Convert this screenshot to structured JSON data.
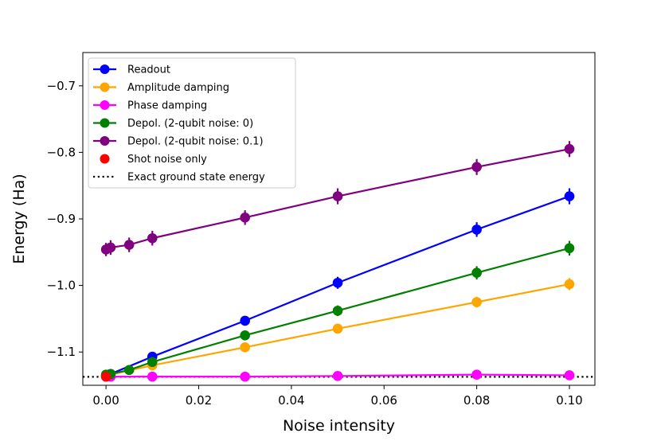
{
  "chart_data": {
    "type": "line",
    "xlabel": "Noise intensity",
    "ylabel": "Energy (Ha)",
    "xlim": [
      -0.005,
      0.1055
    ],
    "ylim": [
      -1.15,
      -0.65
    ],
    "xticks": [
      0.0,
      0.02,
      0.04,
      0.06,
      0.08,
      0.1
    ],
    "xtick_labels": [
      "0.00",
      "0.02",
      "0.04",
      "0.06",
      "0.08",
      "0.10"
    ],
    "yticks": [
      -0.7,
      -0.8,
      -0.9,
      -1.0,
      -1.1
    ],
    "ytick_labels": [
      "−0.7",
      "−0.8",
      "−0.9",
      "−1.0",
      "−1.1"
    ],
    "legend_position": "upper-left",
    "grid": false,
    "series": [
      {
        "name": "Readout",
        "color": "#0000ff",
        "x": [
          0.0,
          0.001,
          0.01,
          0.03,
          0.05,
          0.08,
          0.1
        ],
        "y": [
          -1.135,
          -1.133,
          -1.107,
          -1.053,
          -0.996,
          -0.916,
          -0.866
        ],
        "yerr": [
          0.004,
          0.004,
          0.006,
          0.007,
          0.009,
          0.011,
          0.012
        ]
      },
      {
        "name": "Amplitude damping",
        "color": "#ffa500",
        "x": [
          0.0,
          0.001,
          0.01,
          0.03,
          0.05,
          0.08,
          0.1
        ],
        "y": [
          -1.136,
          -1.134,
          -1.12,
          -1.093,
          -1.065,
          -1.025,
          -0.998
        ],
        "yerr": [
          0.004,
          0.004,
          0.005,
          0.006,
          0.007,
          0.008,
          0.009
        ]
      },
      {
        "name": "Phase damping",
        "color": "#ff00ff",
        "x": [
          0.0,
          0.001,
          0.01,
          0.03,
          0.05,
          0.08,
          0.1
        ],
        "y": [
          -1.137,
          -1.137,
          -1.137,
          -1.137,
          -1.136,
          -1.134,
          -1.135
        ],
        "yerr": [
          0.003,
          0.003,
          0.003,
          0.004,
          0.004,
          0.005,
          0.004
        ]
      },
      {
        "name": "Depol. (2-qubit noise: 0)",
        "color": "#008000",
        "x": [
          0.0,
          0.001,
          0.005,
          0.01,
          0.03,
          0.05,
          0.08,
          0.1
        ],
        "y": [
          -1.134,
          -1.133,
          -1.127,
          -1.115,
          -1.075,
          -1.038,
          -0.981,
          -0.944
        ],
        "yerr": [
          0.004,
          0.004,
          0.005,
          0.006,
          0.007,
          0.008,
          0.01,
          0.011
        ]
      },
      {
        "name": "Depol. (2-qubit noise: 0.1)",
        "color": "#800080",
        "x": [
          0.0,
          0.001,
          0.005,
          0.01,
          0.03,
          0.05,
          0.08,
          0.1
        ],
        "y": [
          -0.946,
          -0.943,
          -0.939,
          -0.929,
          -0.898,
          -0.866,
          -0.822,
          -0.795
        ],
        "yerr": [
          0.01,
          0.011,
          0.011,
          0.011,
          0.011,
          0.012,
          0.012,
          0.012
        ]
      }
    ],
    "shot_noise_only": {
      "name": "Shot noise only",
      "color": "#ff0000",
      "x": [
        0.0
      ],
      "y": [
        -1.137
      ]
    },
    "exact_energy": {
      "name": "Exact ground state energy",
      "color": "#000000",
      "style": "dotted",
      "y": -1.1373
    }
  }
}
